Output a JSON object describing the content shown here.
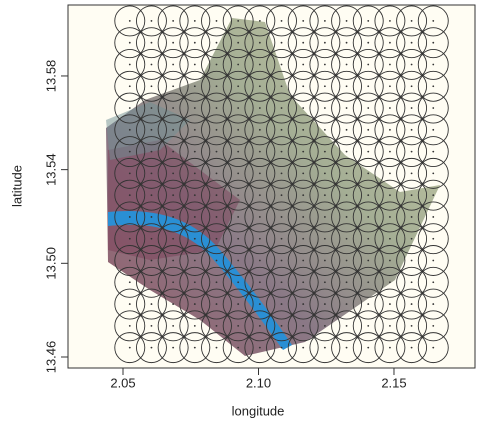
{
  "chart_data": {
    "type": "scatter",
    "x_label": "longitude",
    "y_label": "latitude",
    "xlim": [
      2.0297,
      2.1799
    ],
    "ylim": [
      13.4553,
      13.6103
    ],
    "xticks": [
      2.05,
      {
        "value": 2.1,
        "label": "2.10"
      },
      2.15
    ],
    "yticks": [
      13.46,
      {
        "value": 13.5,
        "label": "13.50"
      },
      13.54,
      13.58
    ],
    "grid_x": [
      2.0525,
      2.0605,
      2.0685,
      2.0765,
      2.0845,
      2.0925,
      2.1005,
      2.1085,
      2.1165,
      2.1245,
      2.1325,
      2.1405,
      2.1485,
      2.1565,
      2.1645
    ],
    "grid_y": [
      13.464,
      13.4733,
      13.4826,
      13.4919,
      13.5012,
      13.5105,
      13.5198,
      13.5291,
      13.5384,
      13.5477,
      13.557,
      13.5663,
      13.5756,
      13.5849,
      13.5942,
      13.6035
    ],
    "color": "#333333"
  }
}
